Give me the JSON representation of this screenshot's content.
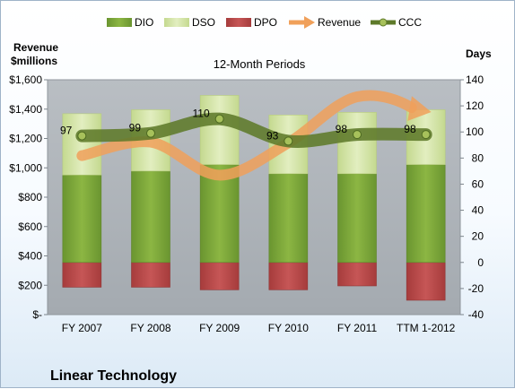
{
  "chart_data": {
    "type": "bar",
    "subtitle": "12-Month Periods",
    "company": "Linear Technology",
    "left_axis": {
      "title_line1": "Revenue",
      "title_line2": "$millions",
      "range": [
        0,
        1600
      ],
      "ticks": [
        0,
        200,
        400,
        600,
        800,
        1000,
        1200,
        1400,
        1600
      ],
      "tick_labels": [
        "$-",
        "$200",
        "$400",
        "$600",
        "$800",
        "$1,000",
        "$1,200",
        "$1,400",
        "$1,600"
      ]
    },
    "right_axis": {
      "title": "Days",
      "range": [
        -40,
        140
      ],
      "ticks": [
        -40,
        -20,
        0,
        20,
        40,
        60,
        80,
        100,
        120,
        140
      ],
      "tick_labels": [
        "-40",
        "-20",
        "0",
        "20",
        "40",
        "60",
        "80",
        "100",
        "120",
        "140"
      ]
    },
    "categories": [
      "FY 2007",
      "FY 2008",
      "FY 2009",
      "FY 2010",
      "FY 2011",
      "TTM 1-2012"
    ],
    "legend": {
      "position": "top",
      "entries": [
        {
          "name": "DIO",
          "kind": "bar",
          "color": "#7fa83a"
        },
        {
          "name": "DSO",
          "kind": "bar",
          "color": "#d5e6a8"
        },
        {
          "name": "DPO",
          "kind": "bar",
          "color": "#b84a4a"
        },
        {
          "name": "Revenue",
          "kind": "arrow",
          "color": "#f0a05a"
        },
        {
          "name": "CCC",
          "kind": "line",
          "color": "#5e7a2a"
        }
      ]
    },
    "series": [
      {
        "name": "DIO",
        "axis": "right",
        "values": [
          67,
          70,
          75,
          68,
          68,
          75
        ]
      },
      {
        "name": "DSO",
        "axis": "right",
        "values": [
          47,
          47,
          53,
          45,
          47,
          42
        ]
      },
      {
        "name": "DPO",
        "axis": "right",
        "values": [
          -19,
          -19,
          -21,
          -21,
          -18,
          -29
        ]
      },
      {
        "name": "CCC",
        "axis": "right",
        "values": [
          97,
          99,
          110,
          93,
          98,
          98
        ]
      },
      {
        "name": "Revenue",
        "axis": "left",
        "values": [
          1083,
          1175,
          950,
          1170,
          1484,
          1380
        ]
      }
    ],
    "ccc_labels": [
      "97",
      "99",
      "110",
      "93",
      "98",
      "98"
    ],
    "colors": {
      "dio": "#7fa83a",
      "dso": "#d5e6a8",
      "dpo": "#b84a4a",
      "revenue": "#f0a05a",
      "ccc": "#5e7a2a",
      "ccc_marker": "#a7c15b",
      "plot_bg": "#aeb3b8"
    },
    "grid": false
  }
}
